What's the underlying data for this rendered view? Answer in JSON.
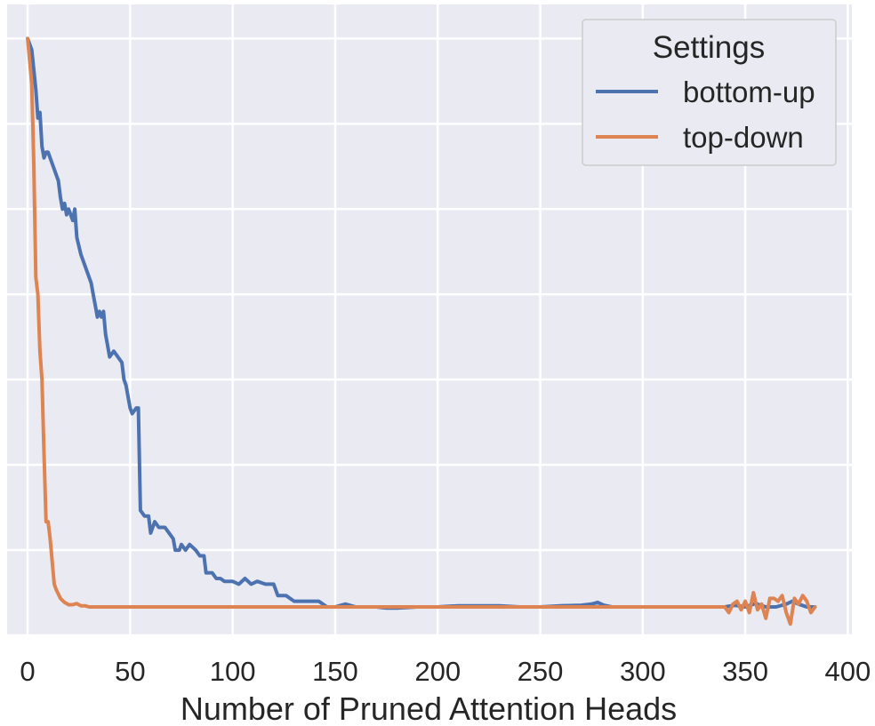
{
  "chart_data": {
    "type": "line",
    "title": "",
    "xlabel": "Number of Pruned Attention Heads",
    "ylabel": "",
    "xlim": [
      -10,
      402
    ],
    "ylim": [
      -0.05,
      1.06
    ],
    "x_ticks": [
      "0",
      "50",
      "100",
      "150",
      "200",
      "250",
      "300",
      "350",
      "400"
    ],
    "y_gridlines": [
      -0.05,
      0.1,
      0.25,
      0.4,
      0.55,
      0.7,
      0.85,
      1.0
    ],
    "grid": true,
    "background": "#eaeaf2",
    "legend": {
      "title": "Settings",
      "placement": "top-right"
    },
    "series": [
      {
        "name": "bottom-up",
        "color": "#4c72b0",
        "points": [
          [
            0,
            1.0
          ],
          [
            2,
            0.98
          ],
          [
            4,
            0.91
          ],
          [
            5,
            0.86
          ],
          [
            6,
            0.87
          ],
          [
            7,
            0.81
          ],
          [
            8,
            0.79
          ],
          [
            9,
            0.8
          ],
          [
            10,
            0.8
          ],
          [
            12,
            0.78
          ],
          [
            14,
            0.76
          ],
          [
            15,
            0.75
          ],
          [
            16,
            0.72
          ],
          [
            17,
            0.7
          ],
          [
            18,
            0.71
          ],
          [
            19,
            0.69
          ],
          [
            20,
            0.7
          ],
          [
            21,
            0.69
          ],
          [
            22,
            0.68
          ],
          [
            23,
            0.7
          ],
          [
            24,
            0.65
          ],
          [
            26,
            0.62
          ],
          [
            28,
            0.6
          ],
          [
            30,
            0.58
          ],
          [
            31,
            0.57
          ],
          [
            32,
            0.55
          ],
          [
            33,
            0.53
          ],
          [
            34,
            0.51
          ],
          [
            35,
            0.52
          ],
          [
            36,
            0.51
          ],
          [
            37,
            0.52
          ],
          [
            38,
            0.48
          ],
          [
            40,
            0.44
          ],
          [
            42,
            0.45
          ],
          [
            44,
            0.44
          ],
          [
            46,
            0.43
          ],
          [
            47,
            0.4
          ],
          [
            48,
            0.39
          ],
          [
            49,
            0.37
          ],
          [
            50,
            0.35
          ],
          [
            51,
            0.34
          ],
          [
            53,
            0.35
          ],
          [
            54,
            0.35
          ],
          [
            55,
            0.17
          ],
          [
            57,
            0.16
          ],
          [
            59,
            0.16
          ],
          [
            60,
            0.13
          ],
          [
            62,
            0.15
          ],
          [
            64,
            0.14
          ],
          [
            67,
            0.14
          ],
          [
            69,
            0.13
          ],
          [
            71,
            0.12
          ],
          [
            72,
            0.1
          ],
          [
            74,
            0.1
          ],
          [
            75,
            0.11
          ],
          [
            77,
            0.1
          ],
          [
            79,
            0.11
          ],
          [
            82,
            0.1
          ],
          [
            84,
            0.09
          ],
          [
            86,
            0.09
          ],
          [
            87,
            0.06
          ],
          [
            90,
            0.06
          ],
          [
            92,
            0.05
          ],
          [
            94,
            0.05
          ],
          [
            96,
            0.045
          ],
          [
            100,
            0.045
          ],
          [
            103,
            0.04
          ],
          [
            106,
            0.05
          ],
          [
            109,
            0.04
          ],
          [
            112,
            0.045
          ],
          [
            116,
            0.04
          ],
          [
            120,
            0.04
          ],
          [
            122,
            0.02
          ],
          [
            126,
            0.02
          ],
          [
            130,
            0.01
          ],
          [
            134,
            0.01
          ],
          [
            138,
            0.01
          ],
          [
            142,
            0.01
          ],
          [
            146,
            0.0
          ],
          [
            150,
            0.0
          ],
          [
            155,
            0.005
          ],
          [
            160,
            0.0
          ],
          [
            165,
            0.0
          ],
          [
            170,
            0.0
          ],
          [
            175,
            -0.002
          ],
          [
            180,
            -0.002
          ],
          [
            190,
            0.0
          ],
          [
            200,
            0.0
          ],
          [
            210,
            0.002
          ],
          [
            220,
            0.002
          ],
          [
            230,
            0.002
          ],
          [
            240,
            0.0
          ],
          [
            250,
            0.0
          ],
          [
            260,
            0.002
          ],
          [
            270,
            0.003
          ],
          [
            275,
            0.005
          ],
          [
            278,
            0.008
          ],
          [
            281,
            0.003
          ],
          [
            285,
            0.0
          ],
          [
            295,
            0.0
          ],
          [
            300,
            0.0
          ],
          [
            310,
            0.0
          ],
          [
            320,
            0.0
          ],
          [
            330,
            0.0
          ],
          [
            340,
            0.0
          ],
          [
            345,
            0.003
          ],
          [
            350,
            0.0
          ],
          [
            355,
            0.006
          ],
          [
            360,
            0.0
          ],
          [
            365,
            0.0
          ],
          [
            370,
            0.005
          ],
          [
            373,
            0.01
          ],
          [
            376,
            0.005
          ],
          [
            380,
            0.0
          ],
          [
            384,
            0.0
          ]
        ]
      },
      {
        "name": "top-down",
        "color": "#dd8452",
        "points": [
          [
            0,
            1.0
          ],
          [
            2,
            0.92
          ],
          [
            3,
            0.78
          ],
          [
            4,
            0.58
          ],
          [
            5,
            0.55
          ],
          [
            6,
            0.45
          ],
          [
            7,
            0.4
          ],
          [
            8,
            0.27
          ],
          [
            9,
            0.15
          ],
          [
            10,
            0.15
          ],
          [
            11,
            0.12
          ],
          [
            12,
            0.08
          ],
          [
            13,
            0.04
          ],
          [
            14,
            0.03
          ],
          [
            16,
            0.015
          ],
          [
            18,
            0.008
          ],
          [
            20,
            0.004
          ],
          [
            22,
            0.004
          ],
          [
            24,
            0.006
          ],
          [
            26,
            0.002
          ],
          [
            28,
            0.002
          ],
          [
            30,
            0.0
          ],
          [
            40,
            0.0
          ],
          [
            60,
            0.0
          ],
          [
            80,
            0.0
          ],
          [
            100,
            0.0
          ],
          [
            120,
            0.0
          ],
          [
            140,
            0.0
          ],
          [
            160,
            0.0
          ],
          [
            180,
            0.0
          ],
          [
            200,
            0.0
          ],
          [
            220,
            0.0
          ],
          [
            240,
            0.0
          ],
          [
            260,
            0.0
          ],
          [
            280,
            0.0
          ],
          [
            300,
            0.0
          ],
          [
            320,
            0.0
          ],
          [
            330,
            0.0
          ],
          [
            340,
            0.0
          ],
          [
            342,
            -0.01
          ],
          [
            344,
            0.005
          ],
          [
            346,
            0.01
          ],
          [
            348,
            -0.005
          ],
          [
            350,
            0.01
          ],
          [
            352,
            -0.01
          ],
          [
            354,
            0.025
          ],
          [
            356,
            -0.005
          ],
          [
            358,
            0.005
          ],
          [
            360,
            -0.02
          ],
          [
            362,
            0.015
          ],
          [
            364,
            0.015
          ],
          [
            366,
            0.01
          ],
          [
            368,
            0.02
          ],
          [
            370,
            -0.01
          ],
          [
            372,
            -0.03
          ],
          [
            374,
            0.015
          ],
          [
            376,
            0.005
          ],
          [
            378,
            0.02
          ],
          [
            380,
            0.01
          ],
          [
            382,
            -0.01
          ],
          [
            384,
            0.0
          ]
        ]
      }
    ]
  }
}
